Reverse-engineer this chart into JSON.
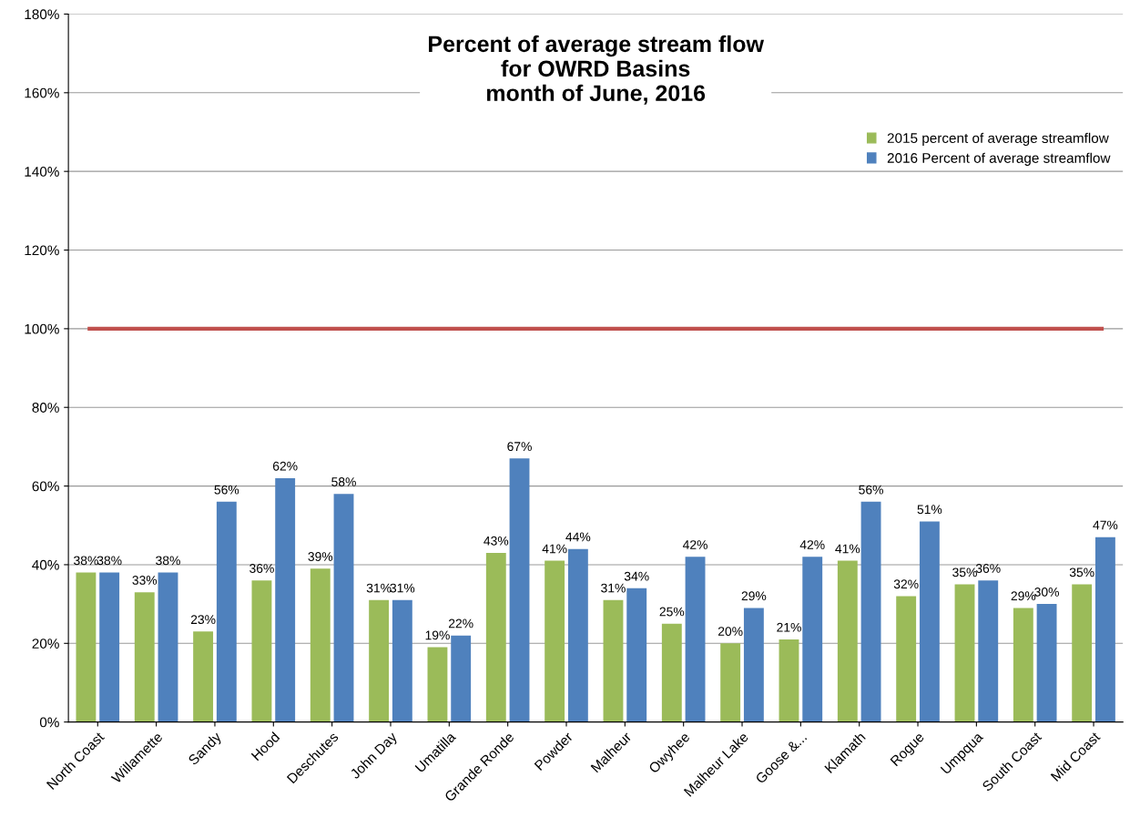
{
  "chart_data": {
    "type": "bar",
    "title": "Percent of average stream flow\nfor OWRD Basins\nmonth of June, 2016",
    "categories": [
      "North Coast",
      "Willamette",
      "Sandy",
      "Hood",
      "Deschutes",
      "John Day",
      "Umatilla",
      "Grande Ronde",
      "Powder",
      "Malheur",
      "Owyhee",
      "Malheur Lake",
      "Goose &...",
      "Klamath",
      "Rogue",
      "Umpqua",
      "South Coast",
      "Mid Coast"
    ],
    "series": [
      {
        "name": "2015 percent of average streamflow",
        "color": "#9bbb59",
        "values": [
          38,
          33,
          23,
          36,
          39,
          31,
          19,
          43,
          41,
          31,
          25,
          20,
          21,
          41,
          32,
          35,
          29,
          35
        ],
        "value_labels": [
          "38%",
          "33%",
          "23%",
          "36%",
          "39%",
          "31%",
          "19%",
          "43%",
          "41%",
          "31%",
          "25%",
          "20%",
          "21%",
          "41%",
          "32%",
          "35%",
          "29%",
          "35%"
        ]
      },
      {
        "name": "2016 Percent of average streamflow",
        "color": "#4f81bd",
        "values": [
          38,
          38,
          56,
          62,
          58,
          31,
          22,
          67,
          44,
          34,
          42,
          29,
          42,
          56,
          51,
          36,
          30,
          47
        ],
        "value_labels": [
          "38%",
          "38%",
          "56%",
          "62%",
          "58%",
          "31%",
          "22%",
          "67%",
          "44%",
          "34%",
          "42%",
          "29%",
          "42%",
          "56%",
          "51%",
          "36%",
          "30%",
          "47%"
        ]
      }
    ],
    "ylim": [
      0,
      180
    ],
    "yticks": [
      {
        "value": 0,
        "label": "0%"
      },
      {
        "value": 20,
        "label": "20%"
      },
      {
        "value": 40,
        "label": "40%"
      },
      {
        "value": 60,
        "label": "60%"
      },
      {
        "value": 80,
        "label": "80%"
      },
      {
        "value": 100,
        "label": "100%"
      },
      {
        "value": 120,
        "label": "120%"
      },
      {
        "value": 140,
        "label": "140%"
      },
      {
        "value": 160,
        "label": "160%"
      },
      {
        "value": 180,
        "label": "180%"
      }
    ],
    "ref_lines": [
      {
        "axis": "y",
        "value": 100,
        "color": "#c0504d"
      }
    ],
    "grid": "y",
    "legend": "top right"
  }
}
